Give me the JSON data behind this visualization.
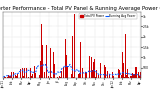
{
  "title": "Solar PV/Inverter Performance - Total PV Panel & Running Average Power Output",
  "title_fontsize": 3.8,
  "background_color": "#ffffff",
  "bar_color": "#cc0000",
  "avg_line_color": "#0055ff",
  "ylim": [
    0,
    3200
  ],
  "yticks": [
    500,
    1000,
    1500,
    2000,
    2500,
    3000
  ],
  "ytick_labels": [
    "500",
    "1k",
    "1.5k",
    "2k",
    "2.5k",
    "3k"
  ],
  "grid_color": "#888888",
  "legend_pv_color": "#cc0000",
  "legend_avg_color": "#0055ff",
  "legend_pv_label": "Total PV Power",
  "legend_avg_label": "Running Avg Power",
  "n_points": 400
}
